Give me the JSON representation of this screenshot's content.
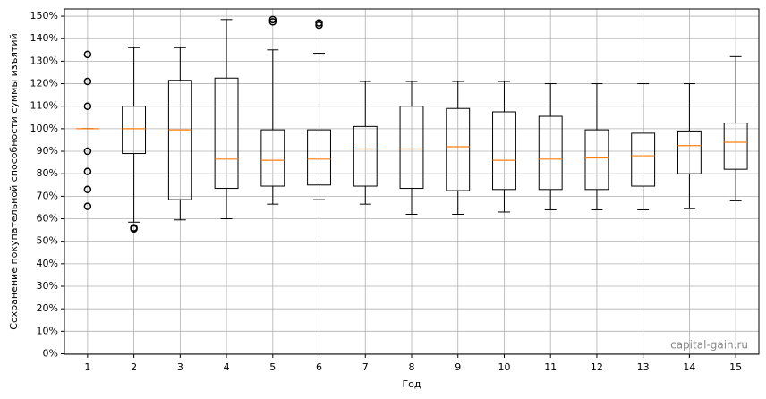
{
  "chart_data": {
    "type": "box",
    "x_label": "Год",
    "y_label": "Сохранение покупательной способности суммы изъятий",
    "watermark": "capital-gain.ru",
    "categories": [
      "1",
      "2",
      "3",
      "4",
      "5",
      "6",
      "7",
      "8",
      "9",
      "10",
      "11",
      "12",
      "13",
      "14",
      "15"
    ],
    "boxes": [
      {
        "whislo": 100,
        "q1": 100,
        "med": 100,
        "q3": 100,
        "whishi": 100,
        "fliers": [
          133,
          121,
          110,
          90,
          81,
          73,
          65.5
        ]
      },
      {
        "whislo": 58.5,
        "q1": 89,
        "med": 100,
        "q3": 110,
        "whishi": 136,
        "fliers": [
          56,
          55.5
        ]
      },
      {
        "whislo": 59.5,
        "q1": 68.5,
        "med": 99.5,
        "q3": 121.5,
        "whishi": 136,
        "fliers": []
      },
      {
        "whislo": 60,
        "q1": 73.5,
        "med": 86.5,
        "q3": 122.5,
        "whishi": 148.5,
        "fliers": []
      },
      {
        "whislo": 66.5,
        "q1": 74.5,
        "med": 86,
        "q3": 99.5,
        "whishi": 135,
        "fliers": [
          148.5,
          147.5
        ]
      },
      {
        "whislo": 68.5,
        "q1": 75,
        "med": 86.5,
        "q3": 99.5,
        "whishi": 133.5,
        "fliers": [
          147,
          146
        ]
      },
      {
        "whislo": 66.5,
        "q1": 74.5,
        "med": 91,
        "q3": 101,
        "whishi": 121,
        "fliers": []
      },
      {
        "whislo": 62,
        "q1": 73.5,
        "med": 91,
        "q3": 110,
        "whishi": 121,
        "fliers": []
      },
      {
        "whislo": 62,
        "q1": 72.5,
        "med": 92,
        "q3": 109,
        "whishi": 121,
        "fliers": []
      },
      {
        "whislo": 63,
        "q1": 73,
        "med": 86,
        "q3": 107.5,
        "whishi": 121,
        "fliers": []
      },
      {
        "whislo": 64,
        "q1": 73,
        "med": 86.5,
        "q3": 105.5,
        "whishi": 120,
        "fliers": []
      },
      {
        "whislo": 64,
        "q1": 73,
        "med": 87,
        "q3": 99.5,
        "whishi": 120,
        "fliers": []
      },
      {
        "whislo": 64,
        "q1": 74.5,
        "med": 88,
        "q3": 98,
        "whishi": 120,
        "fliers": []
      },
      {
        "whislo": 64.5,
        "q1": 80,
        "med": 92.5,
        "q3": 99,
        "whishi": 120,
        "fliers": []
      },
      {
        "whislo": 68,
        "q1": 82,
        "med": 94,
        "q3": 102.5,
        "whishi": 132,
        "fliers": []
      }
    ],
    "box_color": "#000000",
    "median_color": "#ff7f0e",
    "ylim": [
      -0.2,
      153.2
    ],
    "yticks": [
      {
        "value": 0,
        "label": "0%"
      },
      {
        "value": 10,
        "label": "10%"
      },
      {
        "value": 20,
        "label": "20%"
      },
      {
        "value": 30,
        "label": "30%"
      },
      {
        "value": 40,
        "label": "40%"
      },
      {
        "value": 50,
        "label": "50%"
      },
      {
        "value": 60,
        "label": "60%"
      },
      {
        "value": 70,
        "label": "70%"
      },
      {
        "value": 80,
        "label": "80%"
      },
      {
        "value": 90,
        "label": "90%"
      },
      {
        "value": 100,
        "label": "100%"
      },
      {
        "value": 110,
        "label": "110%"
      },
      {
        "value": 120,
        "label": "120%"
      },
      {
        "value": 130,
        "label": "130%"
      },
      {
        "value": 140,
        "label": "140%"
      },
      {
        "value": 150,
        "label": "150%"
      }
    ],
    "grid": true
  }
}
